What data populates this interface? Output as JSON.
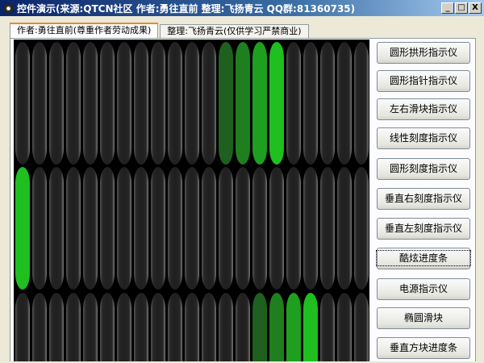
{
  "window": {
    "title": "控件演示(来源:QTCN社区 作者:勇往直前 整理:飞扬青云 QQ群:81360735)",
    "minimize": "_",
    "maximize": "□",
    "close": "X"
  },
  "tabs": [
    {
      "label": "作者:勇往直前(尊重作者劳动成果)",
      "active": true
    },
    {
      "label": "整理:飞扬青云(仅供学习严禁商业)",
      "active": false
    }
  ],
  "display": {
    "columns": 21,
    "off_color": "#1f1f1f",
    "rows": [
      {
        "lit": [
          {
            "index": 12,
            "color": "#1f5f1f"
          },
          {
            "index": 13,
            "color": "#1f7f1f"
          },
          {
            "index": 14,
            "color": "#1f9f1f"
          },
          {
            "index": 15,
            "color": "#1fbf1f"
          }
        ]
      },
      {
        "lit": [
          {
            "index": 0,
            "color": "#1fbf1f"
          }
        ]
      },
      {
        "lit": [
          {
            "index": 14,
            "color": "#1f5f1f"
          },
          {
            "index": 15,
            "color": "#1f7f1f"
          },
          {
            "index": 16,
            "color": "#1f9f1f"
          },
          {
            "index": 17,
            "color": "#1fbf1f"
          }
        ]
      }
    ]
  },
  "buttons": [
    "圆形拱形指示仪",
    "圆形指针指示仪",
    "左右滑块指示仪",
    "线性刻度指示仪",
    "圆形刻度指示仪",
    "垂直右刻度指示仪",
    "垂直左刻度指示仪",
    "酷炫进度条",
    "电源指示仪",
    "椭圆滑块",
    "垂直方块进度条"
  ],
  "focused_button": 7
}
